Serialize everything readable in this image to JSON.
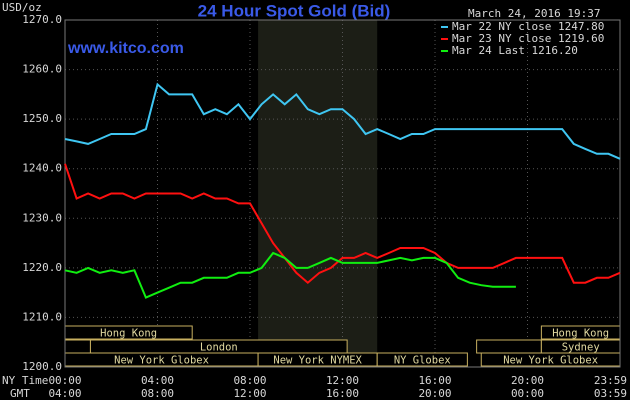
{
  "chart_data": {
    "type": "line",
    "title": "24 Hour Spot Gold (Bid)",
    "source": "www.kitco.com",
    "timestamp": "March 24, 2016 19:37",
    "y_label": "USD/oz",
    "x_label": "NY Time",
    "x2_label": "GMT",
    "x": [
      0,
      0.5,
      1,
      1.5,
      2,
      2.5,
      3,
      3.5,
      4,
      4.5,
      5,
      5.5,
      6,
      6.5,
      7,
      7.5,
      8,
      8.5,
      9,
      9.5,
      10,
      10.5,
      11,
      11.5,
      12,
      12.5,
      13,
      13.5,
      14,
      14.5,
      15,
      15.5,
      16,
      16.5,
      17,
      17.5,
      18,
      18.5,
      19,
      19.5,
      20,
      20.5,
      21,
      21.5,
      22,
      22.5,
      23,
      23.5,
      24
    ],
    "xlim": [
      0,
      24
    ],
    "xticks": [
      {
        "value": 0,
        "label": "00:00"
      },
      {
        "value": 4,
        "label": "04:00"
      },
      {
        "value": 8,
        "label": "08:00"
      },
      {
        "value": 12,
        "label": "12:00"
      },
      {
        "value": 16,
        "label": "16:00"
      },
      {
        "value": 20,
        "label": "20:00"
      },
      {
        "value": 24,
        "label": "23:59"
      }
    ],
    "x2ticks": [
      {
        "value": 0,
        "label": "04:00"
      },
      {
        "value": 4,
        "label": "08:00"
      },
      {
        "value": 8,
        "label": "12:00"
      },
      {
        "value": 12,
        "label": "16:00"
      },
      {
        "value": 16,
        "label": "20:00"
      },
      {
        "value": 20,
        "label": "00:00"
      },
      {
        "value": 24,
        "label": "03:59"
      }
    ],
    "ylim": [
      1200,
      1270
    ],
    "yticks": [
      {
        "value": 1200,
        "label": "1200.0"
      },
      {
        "value": 1210,
        "label": "1210.0"
      },
      {
        "value": 1220,
        "label": "1220.0"
      },
      {
        "value": 1230,
        "label": "1230.0"
      },
      {
        "value": 1240,
        "label": "1240.0"
      },
      {
        "value": 1250,
        "label": "1250.0"
      },
      {
        "value": 1260,
        "label": "1260.0"
      },
      {
        "value": 1270,
        "label": "1270.0"
      }
    ],
    "grid": true,
    "legend": "top-right",
    "sessions": [
      "Hong Kong",
      "Hong Kong",
      "London",
      "Sydney",
      "New York Globex",
      "New York NYMEX",
      "NY Globex",
      "New York Globex"
    ],
    "series": [
      {
        "name": "Mar 22 NY close 1247.80",
        "color": "#3fc6f2",
        "values": [
          1246,
          1245.5,
          1245,
          1246,
          1247,
          1247,
          1247,
          1248,
          1257,
          1255,
          1255,
          1255,
          1251,
          1252,
          1251,
          1253,
          1250,
          1253,
          1255,
          1253,
          1255,
          1252,
          1251,
          1252,
          1252,
          1250,
          1247,
          1248,
          1247,
          1246,
          1247,
          1247,
          1248,
          1248,
          1248,
          1248,
          1248,
          1248,
          1248,
          1248,
          1248,
          1248,
          1248,
          1248,
          1245,
          1244,
          1243,
          1243,
          1242
        ]
      },
      {
        "name": "Mar 23 NY close 1219.60",
        "color": "#ff1010",
        "values": [
          1241,
          1234,
          1235,
          1234,
          1235,
          1235,
          1234,
          1235,
          1235,
          1235,
          1235,
          1234,
          1235,
          1234,
          1234,
          1233,
          1233,
          1229,
          1225,
          1222,
          1219,
          1217,
          1219,
          1220,
          1222,
          1222,
          1223,
          1222,
          1223,
          1224,
          1224,
          1224,
          1223,
          1221,
          1220,
          1220,
          1220,
          1220,
          1221,
          1222,
          1222,
          1222,
          1222,
          1222,
          1217,
          1217,
          1218,
          1218,
          1219
        ]
      },
      {
        "name": "Mar 24 Last 1216.20",
        "color": "#10ee10",
        "values": [
          1219.5,
          1219,
          1220,
          1219,
          1219.5,
          1219,
          1219.5,
          1214,
          1215,
          1216,
          1217,
          1217,
          1218,
          1218,
          1218,
          1219,
          1219,
          1220,
          1223,
          1222,
          1220,
          1220,
          1221,
          1222,
          1221,
          1221,
          1221,
          1221,
          1221.5,
          1222,
          1221.5,
          1222,
          1222,
          1221,
          1218,
          1217,
          1216.5,
          1216.2,
          1216.2,
          1216.2,
          null,
          null,
          null,
          null,
          null,
          null,
          null,
          null,
          null
        ]
      }
    ]
  }
}
